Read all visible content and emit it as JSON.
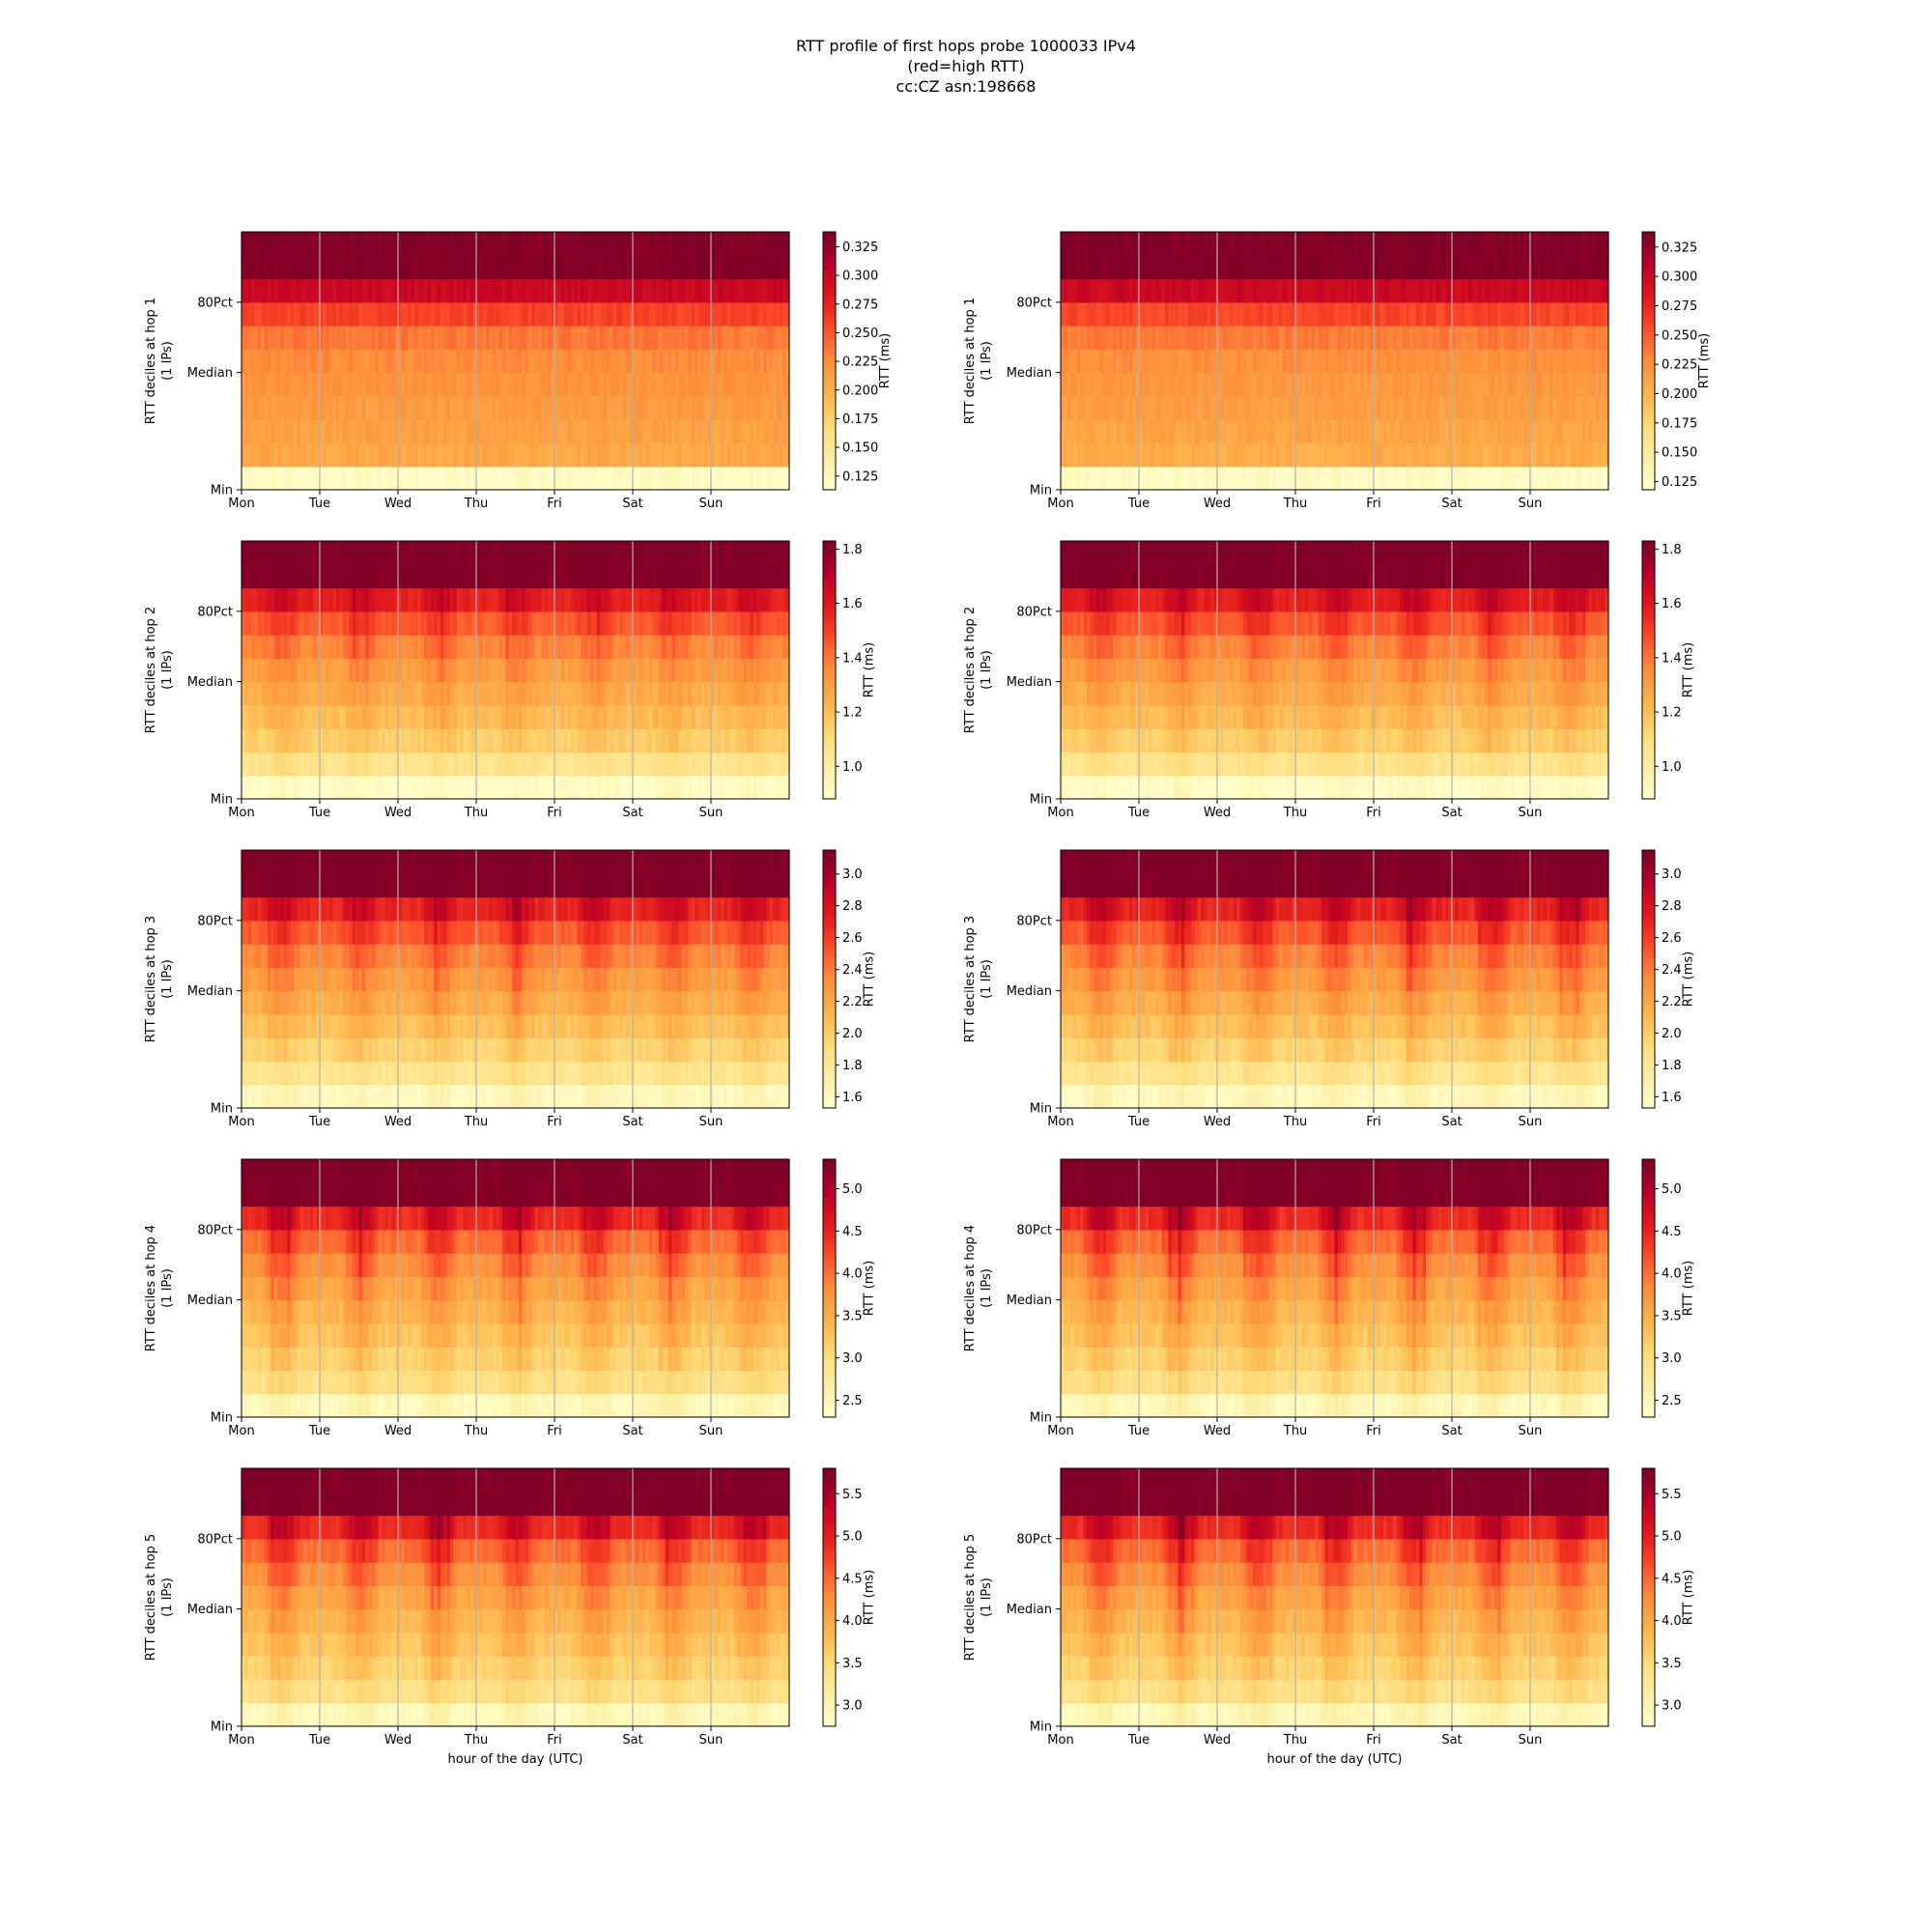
{
  "title_lines": [
    "RTT profile of first hops probe 1000033 IPv4",
    "(red=high RTT)",
    "cc:CZ asn:198668"
  ],
  "colormap": [
    "#ffffcc",
    "#ffeda0",
    "#fed976",
    "#feb24c",
    "#fd8d3c",
    "#fc4e2a",
    "#e31a1c",
    "#bd0026",
    "#800026"
  ],
  "axis_color": "#000000",
  "day_gridline_color": "#b0b0b0",
  "chart_data": [
    {
      "type": "heatmap",
      "panel": "hop1-left",
      "ylabel": "RTT deciles at hop 1",
      "ylabel2": "(1 IPs)",
      "yticks": [
        "Min",
        "Median",
        "80Pct"
      ],
      "xticks": [
        "Mon",
        "Tue",
        "Wed",
        "Thu",
        "Fri",
        "Sat",
        "Sun"
      ],
      "xlabel": "",
      "colorbar": {
        "label": "RTT (ms)",
        "range": [
          0.113,
          0.338
        ],
        "ticks": [
          "0.125",
          "0.150",
          "0.175",
          "0.200",
          "0.225",
          "0.250",
          "0.275",
          "0.300",
          "0.325"
        ]
      },
      "decile_values_median": [
        0.12,
        0.205,
        0.21,
        0.215,
        0.22,
        0.225,
        0.235,
        0.26,
        0.3,
        0.338,
        0.338
      ],
      "diurnal_amplitude": 0.0
    },
    {
      "type": "heatmap",
      "panel": "hop1-right",
      "ylabel": "RTT deciles at hop 1",
      "ylabel2": "(1 IPs)",
      "yticks": [
        "Min",
        "Median",
        "80Pct"
      ],
      "xticks": [
        "Mon",
        "Tue",
        "Wed",
        "Thu",
        "Fri",
        "Sat",
        "Sun"
      ],
      "xlabel": "",
      "colorbar": {
        "label": "RTT (ms)",
        "range": [
          0.118,
          0.338
        ],
        "ticks": [
          "0.125",
          "0.150",
          "0.175",
          "0.200",
          "0.225",
          "0.250",
          "0.275",
          "0.300",
          "0.325"
        ]
      },
      "decile_values_median": [
        0.125,
        0.205,
        0.21,
        0.215,
        0.22,
        0.225,
        0.235,
        0.26,
        0.3,
        0.338,
        0.338
      ],
      "diurnal_amplitude": 0.0
    },
    {
      "type": "heatmap",
      "panel": "hop2-left",
      "ylabel": "RTT deciles at hop 2",
      "ylabel2": "(1 IPs)",
      "yticks": [
        "Min",
        "Median",
        "80Pct"
      ],
      "xticks": [
        "Mon",
        "Tue",
        "Wed",
        "Thu",
        "Fri",
        "Sat",
        "Sun"
      ],
      "xlabel": "",
      "colorbar": {
        "label": "RTT (ms)",
        "range": [
          0.88,
          1.83
        ],
        "ticks": [
          "1.0",
          "1.2",
          "1.4",
          "1.6",
          "1.8"
        ]
      },
      "decile_values_median": [
        0.9,
        1.05,
        1.15,
        1.2,
        1.25,
        1.3,
        1.36,
        1.45,
        1.58,
        1.83,
        1.83
      ],
      "diurnal_amplitude": 0.08
    },
    {
      "type": "heatmap",
      "panel": "hop2-right",
      "ylabel": "RTT deciles at hop 2",
      "ylabel2": "(1 IPs)",
      "yticks": [
        "Min",
        "Median",
        "80Pct"
      ],
      "xticks": [
        "Mon",
        "Tue",
        "Wed",
        "Thu",
        "Fri",
        "Sat",
        "Sun"
      ],
      "xlabel": "",
      "colorbar": {
        "label": "RTT (ms)",
        "range": [
          0.88,
          1.83
        ],
        "ticks": [
          "1.0",
          "1.2",
          "1.4",
          "1.6",
          "1.8"
        ]
      },
      "decile_values_median": [
        0.9,
        1.05,
        1.15,
        1.2,
        1.25,
        1.3,
        1.36,
        1.45,
        1.58,
        1.83,
        1.83
      ],
      "diurnal_amplitude": 0.1
    },
    {
      "type": "heatmap",
      "panel": "hop3-left",
      "ylabel": "RTT deciles at hop 3",
      "ylabel2": "(1 IPs)",
      "yticks": [
        "Min",
        "Median",
        "80Pct"
      ],
      "xticks": [
        "Mon",
        "Tue",
        "Wed",
        "Thu",
        "Fri",
        "Sat",
        "Sun"
      ],
      "xlabel": "",
      "colorbar": {
        "label": "RTT (ms)",
        "range": [
          1.53,
          3.15
        ],
        "ticks": [
          "1.6",
          "1.8",
          "2.0",
          "2.2",
          "2.4",
          "2.6",
          "2.8",
          "3.0"
        ]
      },
      "decile_values_median": [
        1.6,
        1.8,
        1.95,
        2.05,
        2.15,
        2.25,
        2.35,
        2.5,
        2.7,
        3.15,
        3.15
      ],
      "diurnal_amplitude": 0.18
    },
    {
      "type": "heatmap",
      "panel": "hop3-right",
      "ylabel": "RTT deciles at hop 3",
      "ylabel2": "(1 IPs)",
      "yticks": [
        "Min",
        "Median",
        "80Pct"
      ],
      "xticks": [
        "Mon",
        "Tue",
        "Wed",
        "Thu",
        "Fri",
        "Sat",
        "Sun"
      ],
      "xlabel": "",
      "colorbar": {
        "label": "RTT (ms)",
        "range": [
          1.53,
          3.15
        ],
        "ticks": [
          "1.6",
          "1.8",
          "2.0",
          "2.2",
          "2.4",
          "2.6",
          "2.8",
          "3.0"
        ]
      },
      "decile_values_median": [
        1.6,
        1.8,
        1.95,
        2.05,
        2.15,
        2.25,
        2.35,
        2.5,
        2.7,
        3.15,
        3.15
      ],
      "diurnal_amplitude": 0.22
    },
    {
      "type": "heatmap",
      "panel": "hop4-left",
      "ylabel": "RTT deciles at hop 4",
      "ylabel2": "(1 IPs)",
      "yticks": [
        "Min",
        "Median",
        "80Pct"
      ],
      "xticks": [
        "Mon",
        "Tue",
        "Wed",
        "Thu",
        "Fri",
        "Sat",
        "Sun"
      ],
      "xlabel": "",
      "colorbar": {
        "label": "RTT (ms)",
        "range": [
          2.3,
          5.35
        ],
        "ticks": [
          "2.5",
          "3.0",
          "3.5",
          "4.0",
          "4.5",
          "5.0"
        ]
      },
      "decile_values_median": [
        2.45,
        2.9,
        3.1,
        3.25,
        3.4,
        3.55,
        3.75,
        4.0,
        4.45,
        5.35,
        5.35
      ],
      "diurnal_amplitude": 0.45
    },
    {
      "type": "heatmap",
      "panel": "hop4-right",
      "ylabel": "RTT deciles at hop 4",
      "ylabel2": "(1 IPs)",
      "yticks": [
        "Min",
        "Median",
        "80Pct"
      ],
      "xticks": [
        "Mon",
        "Tue",
        "Wed",
        "Thu",
        "Fri",
        "Sat",
        "Sun"
      ],
      "xlabel": "",
      "colorbar": {
        "label": "RTT (ms)",
        "range": [
          2.3,
          5.35
        ],
        "ticks": [
          "2.5",
          "3.0",
          "3.5",
          "4.0",
          "4.5",
          "5.0"
        ]
      },
      "decile_values_median": [
        2.45,
        2.9,
        3.1,
        3.25,
        3.4,
        3.55,
        3.75,
        4.0,
        4.45,
        5.35,
        5.35
      ],
      "diurnal_amplitude": 0.5
    },
    {
      "type": "heatmap",
      "panel": "hop5-left",
      "ylabel": "RTT deciles at hop 5",
      "ylabel2": "(1 IPs)",
      "yticks": [
        "Min",
        "Median",
        "80Pct"
      ],
      "xticks": [
        "Mon",
        "Tue",
        "Wed",
        "Thu",
        "Fri",
        "Sat",
        "Sun"
      ],
      "xlabel": "hour of the day (UTC)",
      "colorbar": {
        "label": "RTT (ms)",
        "range": [
          2.75,
          5.8
        ],
        "ticks": [
          "3.0",
          "3.5",
          "4.0",
          "4.5",
          "5.0",
          "5.5"
        ]
      },
      "decile_values_median": [
        2.9,
        3.35,
        3.55,
        3.7,
        3.85,
        4.0,
        4.2,
        4.45,
        4.9,
        5.8,
        5.8
      ],
      "diurnal_amplitude": 0.45
    },
    {
      "type": "heatmap",
      "panel": "hop5-right",
      "ylabel": "RTT deciles at hop 5",
      "ylabel2": "(1 IPs)",
      "yticks": [
        "Min",
        "Median",
        "80Pct"
      ],
      "xticks": [
        "Mon",
        "Tue",
        "Wed",
        "Thu",
        "Fri",
        "Sat",
        "Sun"
      ],
      "xlabel": "hour of the day (UTC)",
      "colorbar": {
        "label": "RTT (ms)",
        "range": [
          2.75,
          5.8
        ],
        "ticks": [
          "3.0",
          "3.5",
          "4.0",
          "4.5",
          "5.0",
          "5.5"
        ]
      },
      "decile_values_median": [
        2.9,
        3.35,
        3.55,
        3.7,
        3.85,
        4.0,
        4.2,
        4.45,
        4.9,
        5.8,
        5.8
      ],
      "diurnal_amplitude": 0.5
    }
  ]
}
